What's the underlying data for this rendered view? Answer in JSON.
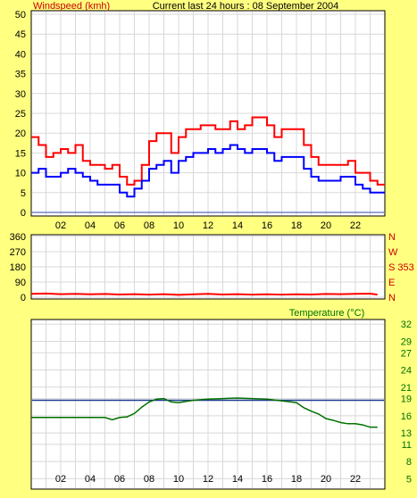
{
  "page": {
    "background": "#ffff80",
    "plot_background": "#ffffff"
  },
  "chart_data": [
    {
      "id": "wind",
      "type": "line",
      "title": "Current last 24 hours : 08 September 2004",
      "ylabel": "Windspeed (kmh)",
      "ylim": [
        0,
        50
      ],
      "yticks": [
        "0",
        "5",
        "10",
        "15",
        "20",
        "25",
        "30",
        "35",
        "40",
        "45",
        "50"
      ],
      "xlim": [
        0,
        24
      ],
      "xticks": [
        "02",
        "04",
        "06",
        "08",
        "10",
        "12",
        "14",
        "16",
        "18",
        "20",
        "22"
      ],
      "grid": true,
      "series": [
        {
          "color": "#ff0000",
          "x": [
            0,
            0.5,
            1,
            1.5,
            2,
            2.5,
            3,
            3.5,
            4,
            4.5,
            5,
            5.5,
            6,
            6.5,
            7,
            7.5,
            8,
            8.5,
            9,
            9.5,
            10,
            10.5,
            11,
            11.5,
            12,
            12.5,
            13,
            13.5,
            14,
            14.5,
            15,
            15.5,
            16,
            16.5,
            17,
            17.5,
            18,
            18.5,
            19,
            19.5,
            20,
            20.5,
            21,
            21.5,
            22,
            22.5,
            23,
            23.5
          ],
          "values": [
            19,
            17,
            14,
            15,
            16,
            15,
            17,
            13,
            12,
            12,
            11,
            12,
            9,
            7,
            8,
            12,
            18,
            20,
            20,
            15,
            19,
            21,
            21,
            22,
            22,
            21,
            21,
            23,
            21,
            22,
            24,
            24,
            22,
            19,
            21,
            21,
            21,
            17,
            14,
            12,
            12,
            12,
            12,
            13,
            10,
            10,
            8,
            7
          ]
        },
        {
          "color": "#0000ff",
          "x": [
            0,
            0.5,
            1,
            1.5,
            2,
            2.5,
            3,
            3.5,
            4,
            4.5,
            5,
            5.5,
            6,
            6.5,
            7,
            7.5,
            8,
            8.5,
            9,
            9.5,
            10,
            10.5,
            11,
            11.5,
            12,
            12.5,
            13,
            13.5,
            14,
            14.5,
            15,
            15.5,
            16,
            16.5,
            17,
            17.5,
            18,
            18.5,
            19,
            19.5,
            20,
            20.5,
            21,
            21.5,
            22,
            22.5,
            23,
            23.5
          ],
          "values": [
            10,
            11,
            9,
            9,
            10,
            11,
            10,
            9,
            8,
            7,
            7,
            7,
            5,
            4,
            6,
            8,
            11,
            12,
            13,
            10,
            13,
            14,
            15,
            15,
            16,
            15,
            16,
            17,
            16,
            15,
            16,
            16,
            15,
            13,
            14,
            14,
            14,
            11,
            9,
            8,
            8,
            8,
            9,
            9,
            7,
            6,
            5,
            5
          ]
        }
      ]
    },
    {
      "id": "direction",
      "type": "line",
      "yticks": [
        "0",
        "90",
        "180",
        "270",
        "360"
      ],
      "ylim": [
        0,
        360
      ],
      "xlim": [
        0,
        24
      ],
      "right_labels": [
        "N",
        "W",
        "S 353",
        "E",
        "N"
      ],
      "grid": true,
      "series": [
        {
          "color": "#ff0000",
          "x": [
            0,
            1,
            2,
            3,
            4,
            5,
            6,
            7,
            8,
            9,
            10,
            11,
            12,
            13,
            14,
            15,
            16,
            17,
            18,
            19,
            20,
            21,
            22,
            23,
            23.5
          ],
          "values": [
            20,
            22,
            18,
            20,
            17,
            19,
            16,
            18,
            15,
            18,
            14,
            17,
            20,
            16,
            18,
            15,
            17,
            15,
            17,
            16,
            19,
            18,
            20,
            21,
            15
          ]
        }
      ]
    },
    {
      "id": "temperature",
      "type": "line",
      "title": "Temperature (°C)",
      "ylim": [
        3.5,
        32.5
      ],
      "yticks": [
        "5",
        "8",
        "11",
        "13",
        "16",
        "19",
        "21",
        "24",
        "27",
        "29",
        "32"
      ],
      "xlim": [
        0,
        24
      ],
      "xticks": [
        "02",
        "04",
        "06",
        "08",
        "10",
        "12",
        "14",
        "16",
        "18",
        "20",
        "22"
      ],
      "reference_line": 18.7,
      "reference_color": "#1f3a93",
      "grid": true,
      "series": [
        {
          "color": "#007000",
          "x": [
            0,
            5,
            5.5,
            6,
            6.5,
            7,
            7.5,
            8,
            8.5,
            9,
            9.5,
            10,
            11,
            12,
            13,
            14,
            15,
            16,
            17,
            18,
            18.5,
            19,
            19.5,
            20,
            20.5,
            21,
            21.5,
            22,
            22.5,
            23,
            23.5
          ],
          "values": [
            15.7,
            15.7,
            15.3,
            15.7,
            15.8,
            16.4,
            17.5,
            18.4,
            18.9,
            19.0,
            18.4,
            18.3,
            18.7,
            18.9,
            19.0,
            19.1,
            19.0,
            18.9,
            18.6,
            18.3,
            17.4,
            16.8,
            16.3,
            15.5,
            15.2,
            14.8,
            14.6,
            14.6,
            14.4,
            14.0,
            14.0
          ]
        }
      ]
    }
  ]
}
